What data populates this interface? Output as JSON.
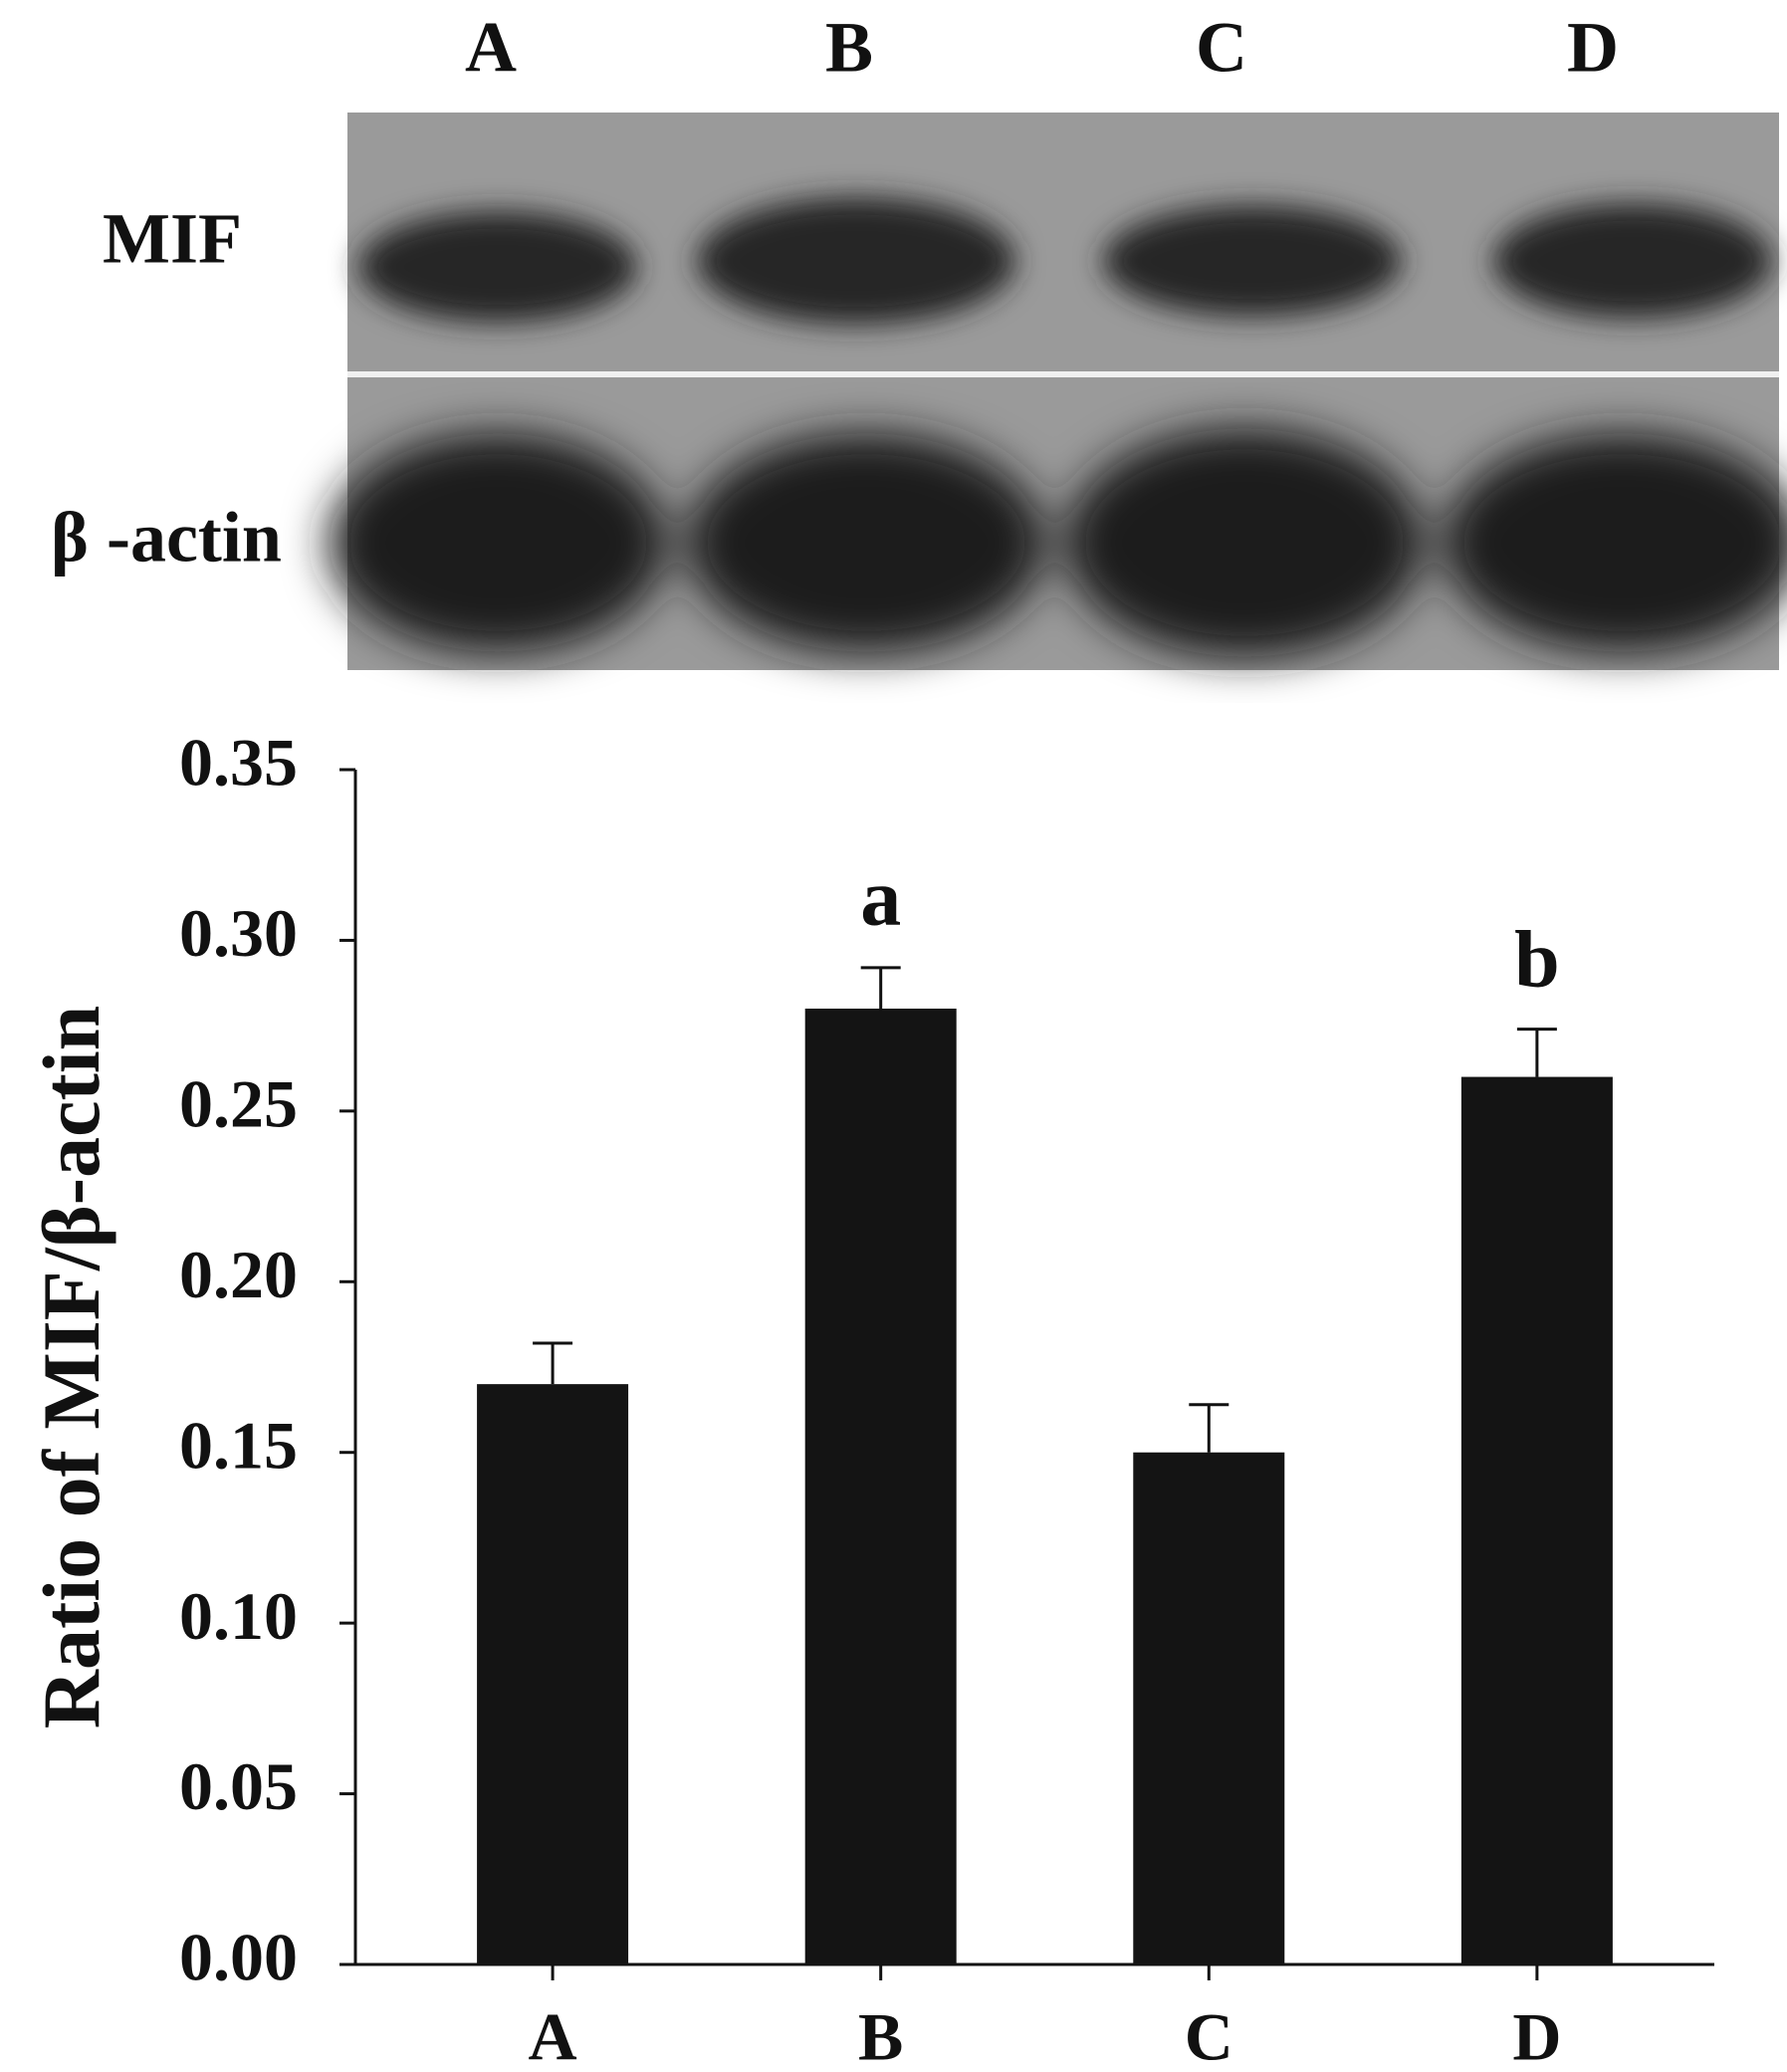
{
  "blot": {
    "lanes": [
      "A",
      "B",
      "C",
      "D"
    ],
    "rows": [
      "MIF",
      "β -actin"
    ]
  },
  "chart_data": {
    "type": "bar",
    "y_label": "Ratio of MIF/β-actin",
    "categories": [
      "A",
      "B",
      "C",
      "D"
    ],
    "values": [
      0.17,
      0.28,
      0.15,
      0.26
    ],
    "errors": [
      0.012,
      0.012,
      0.014,
      0.014
    ],
    "color": "#141414",
    "annotations": [
      {
        "text": "a",
        "x": "B"
      },
      {
        "text": "b",
        "x": "D"
      }
    ],
    "ylim": [
      0,
      0.35
    ],
    "yticks": [
      {
        "value": 0,
        "label": "0.00"
      },
      0.05,
      {
        "value": 0.1,
        "label": "0.10"
      },
      0.15,
      {
        "value": 0.2,
        "label": "0.20"
      },
      0.25,
      {
        "value": 0.3,
        "label": "0.30"
      },
      0.35
    ]
  }
}
